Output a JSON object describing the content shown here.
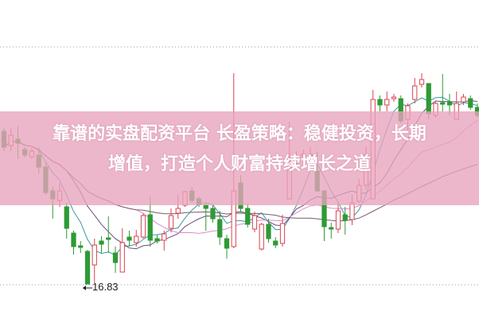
{
  "chart_data": {
    "type": "candlestick",
    "title": "",
    "ylim": [
      15.95,
      23.97
    ],
    "grid": "dotted horizontal",
    "up_color": "#d9434f",
    "down_color": "#2e9a35",
    "ohlc": [
      [
        20.67,
        20.77,
        20.17,
        20.27
      ],
      [
        20.31,
        20.77,
        20.17,
        20.57
      ],
      [
        20.47,
        20.81,
        19.97,
        20.37
      ],
      [
        20.21,
        20.27,
        20.01,
        20.07
      ],
      [
        20.03,
        20.25,
        19.97,
        20.17
      ],
      [
        20.07,
        20.27,
        19.61,
        19.77
      ],
      [
        19.77,
        19.87,
        19.07,
        19.13
      ],
      [
        19.17,
        19.27,
        18.47,
        18.97
      ],
      [
        18.93,
        19.37,
        18.77,
        19.17
      ],
      [
        18.77,
        18.87,
        17.97,
        18.23
      ],
      [
        18.11,
        18.17,
        17.57,
        17.77
      ],
      [
        17.79,
        17.91,
        17.61,
        17.75
      ],
      [
        17.65,
        17.69,
        16.83,
        16.83
      ],
      [
        17.31,
        17.97,
        16.85,
        17.81
      ],
      [
        17.91,
        18.03,
        17.61,
        17.83
      ],
      [
        17.99,
        18.53,
        17.61,
        17.95
      ],
      [
        17.61,
        17.77,
        17.11,
        17.37
      ],
      [
        17.13,
        18.23,
        17.13,
        17.87
      ],
      [
        18.01,
        18.17,
        17.77,
        17.93
      ],
      [
        17.87,
        18.19,
        17.77,
        18.03
      ],
      [
        18.01,
        18.61,
        17.97,
        18.55
      ],
      [
        18.57,
        19.03,
        17.77,
        17.93
      ],
      [
        17.97,
        18.07,
        17.85,
        17.91
      ],
      [
        17.93,
        18.17,
        17.67,
        18.09
      ],
      [
        18.23,
        18.73,
        18.13,
        18.55
      ],
      [
        18.61,
        19.07,
        18.47,
        18.73
      ],
      [
        18.81,
        19.17,
        18.77,
        19.15
      ],
      [
        19.17,
        19.27,
        18.87,
        18.93
      ],
      [
        18.97,
        19.03,
        18.77,
        18.83
      ],
      [
        18.81,
        18.87,
        18.17,
        18.73
      ],
      [
        18.73,
        18.81,
        18.37,
        18.47
      ],
      [
        18.45,
        18.67,
        17.81,
        18.01
      ],
      [
        17.97,
        18.07,
        17.47,
        17.73
      ],
      [
        17.77,
        22.13,
        17.73,
        19.17
      ],
      [
        19.37,
        19.57,
        18.63,
        18.73
      ],
      [
        18.73,
        18.85,
        18.25,
        18.33
      ],
      [
        18.21,
        18.65,
        18.13,
        18.55
      ],
      [
        17.71,
        18.37,
        17.67,
        18.33
      ],
      [
        18.33,
        18.47,
        17.87,
        17.97
      ],
      [
        17.91,
        18.01,
        17.73,
        17.81
      ],
      [
        17.85,
        18.57,
        17.77,
        18.35
      ],
      [
        18.97,
        20.91,
        18.97,
        19.93
      ],
      [
        19.87,
        20.17,
        19.71,
        19.97
      ],
      [
        20.05,
        20.21,
        19.87,
        20.09
      ],
      [
        20.05,
        20.27,
        19.91,
        20.09
      ],
      [
        19.67,
        20.17,
        19.15,
        19.17
      ],
      [
        19.17,
        19.17,
        17.91,
        18.27
      ],
      [
        18.25,
        18.37,
        17.97,
        18.21
      ],
      [
        18.21,
        18.87,
        18.11,
        18.67
      ],
      [
        18.57,
        18.77,
        18.07,
        18.43
      ],
      [
        18.45,
        19.07,
        18.31,
        18.87
      ],
      [
        18.91,
        19.47,
        18.87,
        19.31
      ],
      [
        19.31,
        20.27,
        19.21,
        20.07
      ],
      [
        18.97,
        21.71,
        18.97,
        21.47
      ],
      [
        21.47,
        21.57,
        21.17,
        21.33
      ],
      [
        21.33,
        21.67,
        21.17,
        21.47
      ],
      [
        21.49,
        21.61,
        21.41,
        21.53
      ],
      [
        21.49,
        21.57,
        20.87,
        20.93
      ],
      [
        20.97,
        21.37,
        20.67,
        21.31
      ],
      [
        21.47,
        22.01,
        21.37,
        21.81
      ],
      [
        21.85,
        22.13,
        21.77,
        21.97
      ],
      [
        21.87,
        21.87,
        20.97,
        21.11
      ],
      [
        21.07,
        21.41,
        21.01,
        21.37
      ],
      [
        21.39,
        22.11,
        21.17,
        21.35
      ],
      [
        21.41,
        21.61,
        21.07,
        21.33
      ],
      [
        20.97,
        21.67,
        20.97,
        21.37
      ],
      [
        21.41,
        21.61,
        21.33,
        21.53
      ],
      [
        21.49,
        21.57,
        21.21,
        21.27
      ],
      [
        21.27,
        21.37,
        21.01,
        21.07
      ]
    ],
    "moving_averages": [
      {
        "period": 5,
        "color": "#3a9aa0"
      },
      {
        "period": 10,
        "color": "#6b4a7a"
      },
      {
        "period": 20,
        "color": "#e08ac8"
      },
      {
        "period": 40,
        "color": "#7a5a6a"
      }
    ],
    "annotations": [
      {
        "label": "16.83",
        "type": "low-marker"
      }
    ]
  },
  "banner": {
    "line1": "靠谱的实盘配资平台 长盈策略：稳健投资，长期",
    "line2": "增值，打造个人财富持续增长之道",
    "color": "#e8a3bc"
  }
}
